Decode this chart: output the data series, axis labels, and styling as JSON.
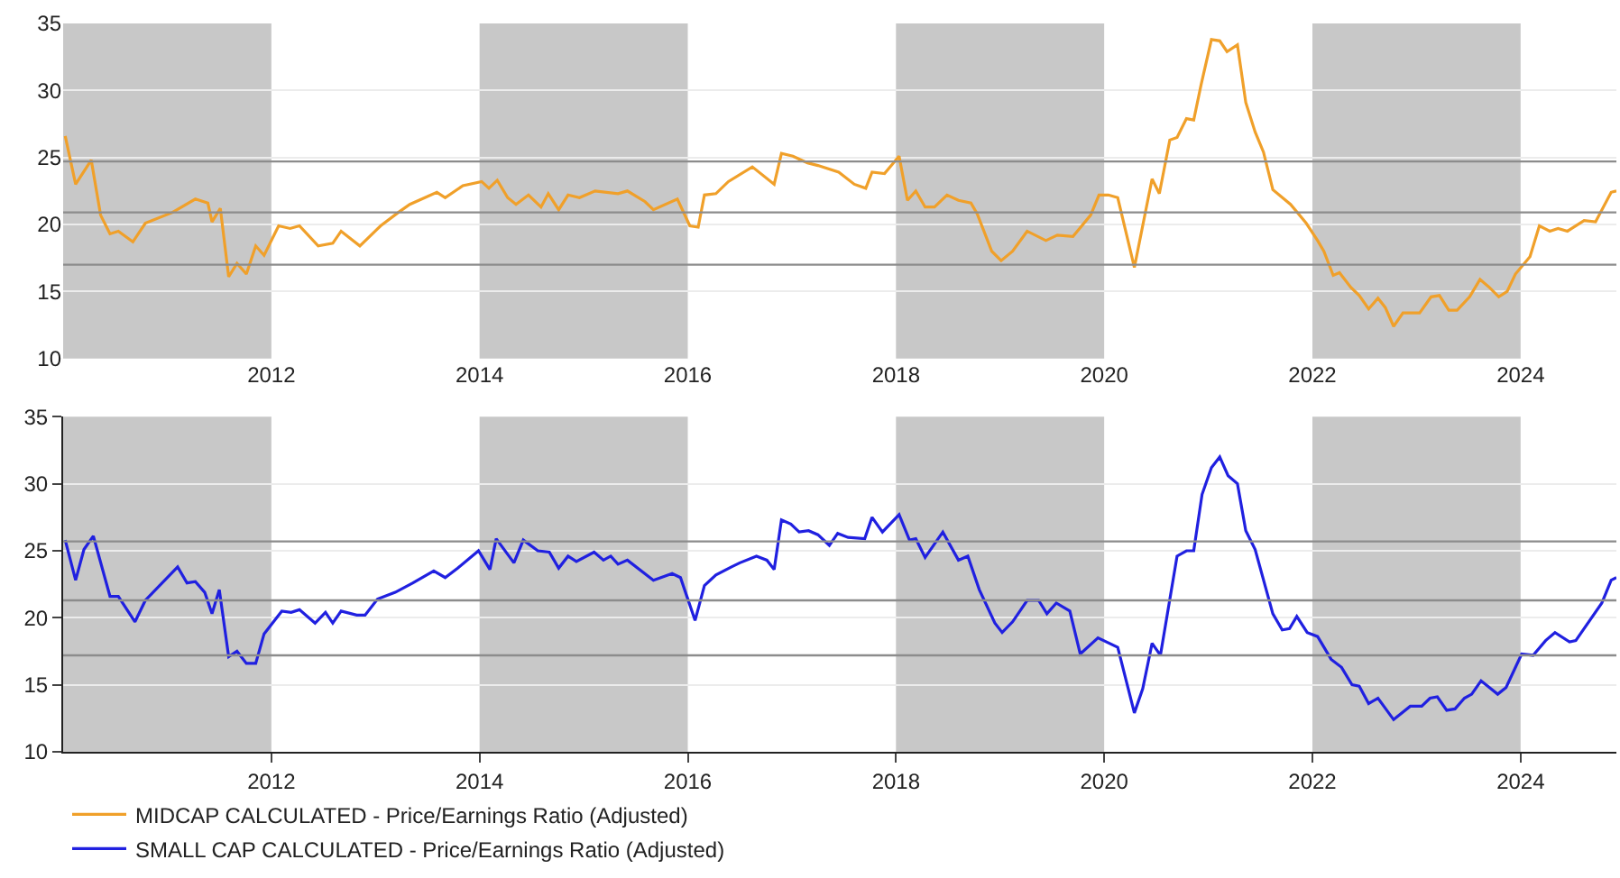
{
  "chart_data": [
    {
      "type": "line",
      "x": [
        2010.02,
        2010.12,
        2010.27,
        2010.36,
        2010.45,
        2010.53,
        2010.67,
        2010.79,
        2011.05,
        2011.27,
        2011.39,
        2011.43,
        2011.51,
        2011.59,
        2011.67,
        2011.76,
        2011.85,
        2011.93,
        2012.07,
        2012.18,
        2012.27,
        2012.45,
        2012.59,
        2012.67,
        2012.85,
        2013.05,
        2013.22,
        2013.33,
        2013.59,
        2013.67,
        2013.84,
        2014.02,
        2014.09,
        2014.17,
        2014.27,
        2014.35,
        2014.47,
        2014.59,
        2014.66,
        2014.76,
        2014.85,
        2014.96,
        2015.11,
        2015.33,
        2015.42,
        2015.59,
        2015.67,
        2015.9,
        2016.02,
        2016.1,
        2016.16,
        2016.27,
        2016.39,
        2016.62,
        2016.83,
        2016.9,
        2017.01,
        2017.15,
        2017.25,
        2017.45,
        2017.6,
        2017.71,
        2017.77,
        2017.89,
        2018.03,
        2018.11,
        2018.19,
        2018.28,
        2018.37,
        2018.49,
        2018.6,
        2018.72,
        2018.78,
        2018.92,
        2019.01,
        2019.12,
        2019.26,
        2019.44,
        2019.55,
        2019.7,
        2019.87,
        2019.95,
        2020.04,
        2020.13,
        2020.29,
        2020.46,
        2020.53,
        2020.63,
        2020.7,
        2020.79,
        2020.86,
        2020.93,
        2021.03,
        2021.11,
        2021.18,
        2021.28,
        2021.36,
        2021.45,
        2021.53,
        2021.62,
        2021.79,
        2021.94,
        2022.05,
        2022.11,
        2022.2,
        2022.26,
        2022.37,
        2022.45,
        2022.54,
        2022.63,
        2022.7,
        2022.78,
        2022.87,
        2023.03,
        2023.14,
        2023.22,
        2023.31,
        2023.39,
        2023.51,
        2023.61,
        2023.7,
        2023.79,
        2023.87,
        2023.95,
        2024.09,
        2024.18,
        2024.28,
        2024.36,
        2024.45,
        2024.61,
        2024.72,
        2024.87,
        2024.92
      ],
      "series": [
        {
          "name": "MIDCAP CALCULATED - Price/Earnings Ratio (Adjusted)",
          "color": "#f0a02a",
          "values": [
            26.6,
            23.0,
            24.8,
            20.7,
            19.3,
            19.5,
            18.7,
            20.1,
            20.9,
            21.9,
            21.6,
            20.2,
            21.2,
            16.1,
            17.1,
            16.3,
            18.4,
            17.7,
            19.9,
            19.7,
            19.9,
            18.4,
            18.6,
            19.5,
            18.4,
            19.9,
            20.9,
            21.5,
            22.4,
            22.0,
            22.9,
            23.2,
            22.7,
            23.3,
            22.0,
            21.5,
            22.2,
            21.3,
            22.3,
            21.1,
            22.2,
            22.0,
            22.5,
            22.3,
            22.5,
            21.7,
            21.1,
            21.9,
            19.9,
            19.8,
            22.2,
            22.3,
            23.2,
            24.3,
            23.0,
            25.3,
            25.1,
            24.6,
            24.4,
            23.9,
            23.0,
            22.7,
            23.9,
            23.8,
            25.1,
            21.8,
            22.5,
            21.3,
            21.3,
            22.2,
            21.8,
            21.6,
            20.8,
            18.0,
            17.3,
            18.0,
            19.5,
            18.8,
            19.2,
            19.1,
            20.7,
            22.2,
            22.2,
            22.0,
            16.8,
            23.4,
            22.3,
            26.3,
            26.5,
            27.9,
            27.8,
            30.4,
            33.8,
            33.7,
            32.9,
            33.4,
            29.1,
            26.9,
            25.4,
            22.6,
            21.5,
            20.1,
            18.8,
            18.0,
            16.2,
            16.4,
            15.3,
            14.7,
            13.7,
            14.5,
            13.8,
            12.4,
            13.4,
            13.4,
            14.6,
            14.7,
            13.6,
            13.6,
            14.6,
            15.9,
            15.3,
            14.6,
            15.0,
            16.3,
            17.6,
            19.9,
            19.5,
            19.7,
            19.5,
            20.3,
            20.2,
            22.4,
            22.5
          ]
        }
      ],
      "xlim": [
        2010.0,
        2024.92
      ],
      "xticks": [
        2012,
        2014,
        2016,
        2018,
        2020,
        2022,
        2024
      ],
      "ylim": [
        10,
        35
      ],
      "yticks": [
        10,
        15,
        20,
        25,
        30,
        35
      ],
      "grid": "y",
      "legend": "bottom",
      "line_style": "solid",
      "bands": [
        {
          "axis": "x",
          "from": 2010.0,
          "to": 2012,
          "color": "#c8c8c8"
        },
        {
          "axis": "x",
          "from": 2014,
          "to": 2016,
          "color": "#c8c8c8"
        },
        {
          "axis": "x",
          "from": 2018,
          "to": 2020,
          "color": "#c8c8c8"
        },
        {
          "axis": "x",
          "from": 2022,
          "to": 2024,
          "color": "#c8c8c8"
        }
      ],
      "ref_lines": [
        {
          "axis": "y",
          "value": 24.7,
          "color": "#8c8c8c"
        },
        {
          "axis": "y",
          "value": 20.9,
          "color": "#8c8c8c"
        },
        {
          "axis": "y",
          "value": 17.0,
          "color": "#8c8c8c"
        }
      ]
    },
    {
      "type": "line",
      "x": [
        2010.02,
        2010.12,
        2010.2,
        2010.29,
        2010.45,
        2010.53,
        2010.69,
        2010.79,
        2011.1,
        2011.19,
        2011.27,
        2011.36,
        2011.43,
        2011.5,
        2011.59,
        2011.67,
        2011.76,
        2011.85,
        2011.93,
        2012.1,
        2012.19,
        2012.27,
        2012.42,
        2012.52,
        2012.59,
        2012.67,
        2012.82,
        2012.9,
        2013.02,
        2013.19,
        2013.36,
        2013.56,
        2013.67,
        2013.79,
        2013.99,
        2014.1,
        2014.16,
        2014.33,
        2014.42,
        2014.56,
        2014.67,
        2014.76,
        2014.85,
        2014.93,
        2015.1,
        2015.19,
        2015.26,
        2015.33,
        2015.42,
        2015.67,
        2015.85,
        2015.93,
        2016.07,
        2016.16,
        2016.27,
        2016.42,
        2016.5,
        2016.66,
        2016.76,
        2016.83,
        2016.9,
        2016.99,
        2017.07,
        2017.16,
        2017.25,
        2017.36,
        2017.44,
        2017.54,
        2017.7,
        2017.77,
        2017.87,
        2018.03,
        2018.13,
        2018.19,
        2018.28,
        2018.45,
        2018.6,
        2018.69,
        2018.8,
        2018.95,
        2019.02,
        2019.12,
        2019.26,
        2019.37,
        2019.45,
        2019.54,
        2019.67,
        2019.77,
        2019.94,
        2020.13,
        2020.29,
        2020.37,
        2020.46,
        2020.54,
        2020.7,
        2020.79,
        2020.86,
        2020.94,
        2021.03,
        2021.11,
        2021.19,
        2021.28,
        2021.36,
        2021.45,
        2021.62,
        2021.71,
        2021.78,
        2021.85,
        2021.95,
        2022.05,
        2022.18,
        2022.28,
        2022.38,
        2022.45,
        2022.54,
        2022.63,
        2022.78,
        2022.94,
        2023.05,
        2023.13,
        2023.2,
        2023.29,
        2023.37,
        2023.46,
        2023.53,
        2023.62,
        2023.78,
        2023.86,
        2024.01,
        2024.12,
        2024.24,
        2024.33,
        2024.47,
        2024.53,
        2024.78,
        2024.87,
        2024.92
      ],
      "series": [
        {
          "name": "SMALL CAP CALCULATED - Price/Earnings Ratio (Adjusted)",
          "color": "#2020e0",
          "values": [
            25.8,
            22.8,
            25.1,
            26.1,
            21.6,
            21.6,
            19.7,
            21.3,
            23.8,
            22.6,
            22.7,
            21.9,
            20.3,
            22.1,
            17.1,
            17.5,
            16.6,
            16.6,
            18.8,
            20.5,
            20.4,
            20.6,
            19.6,
            20.4,
            19.6,
            20.5,
            20.2,
            20.2,
            21.4,
            21.9,
            22.6,
            23.5,
            23.0,
            23.7,
            25.0,
            23.6,
            25.9,
            24.1,
            25.8,
            25.0,
            24.9,
            23.7,
            24.6,
            24.2,
            24.9,
            24.3,
            24.6,
            24.0,
            24.3,
            22.8,
            23.3,
            23.0,
            19.8,
            22.4,
            23.2,
            23.8,
            24.1,
            24.6,
            24.3,
            23.6,
            27.3,
            27.0,
            26.4,
            26.5,
            26.2,
            25.4,
            26.3,
            26.0,
            25.9,
            27.5,
            26.4,
            27.7,
            25.8,
            25.9,
            24.5,
            26.4,
            24.3,
            24.6,
            22.1,
            19.6,
            18.9,
            19.7,
            21.3,
            21.3,
            20.3,
            21.1,
            20.5,
            17.3,
            18.5,
            17.8,
            12.9,
            14.7,
            18.1,
            17.2,
            24.6,
            25.0,
            25.0,
            29.2,
            31.2,
            32.0,
            30.6,
            30.0,
            26.5,
            25.1,
            20.3,
            19.1,
            19.2,
            20.1,
            18.9,
            18.6,
            16.9,
            16.3,
            15.0,
            14.9,
            13.6,
            14.0,
            12.4,
            13.4,
            13.4,
            14.0,
            14.1,
            13.1,
            13.2,
            14.0,
            14.3,
            15.3,
            14.3,
            14.8,
            17.3,
            17.2,
            18.3,
            18.9,
            18.2,
            18.3,
            21.1,
            22.8,
            23.0
          ]
        }
      ],
      "xlim": [
        2010.0,
        2024.92
      ],
      "xticks": [
        2012,
        2014,
        2016,
        2018,
        2020,
        2022,
        2024
      ],
      "ylim": [
        10,
        35
      ],
      "yticks": [
        10,
        15,
        20,
        25,
        30,
        35
      ],
      "grid": "y",
      "legend": "bottom",
      "line_style": "solid",
      "bands": [
        {
          "axis": "x",
          "from": 2010.0,
          "to": 2012,
          "color": "#c8c8c8"
        },
        {
          "axis": "x",
          "from": 2014,
          "to": 2016,
          "color": "#c8c8c8"
        },
        {
          "axis": "x",
          "from": 2018,
          "to": 2020,
          "color": "#c8c8c8"
        },
        {
          "axis": "x",
          "from": 2022,
          "to": 2024,
          "color": "#c8c8c8"
        }
      ],
      "ref_lines": [
        {
          "axis": "y",
          "value": 25.7,
          "color": "#8c8c8c"
        },
        {
          "axis": "y",
          "value": 21.3,
          "color": "#8c8c8c"
        },
        {
          "axis": "y",
          "value": 17.2,
          "color": "#8c8c8c"
        }
      ]
    }
  ]
}
